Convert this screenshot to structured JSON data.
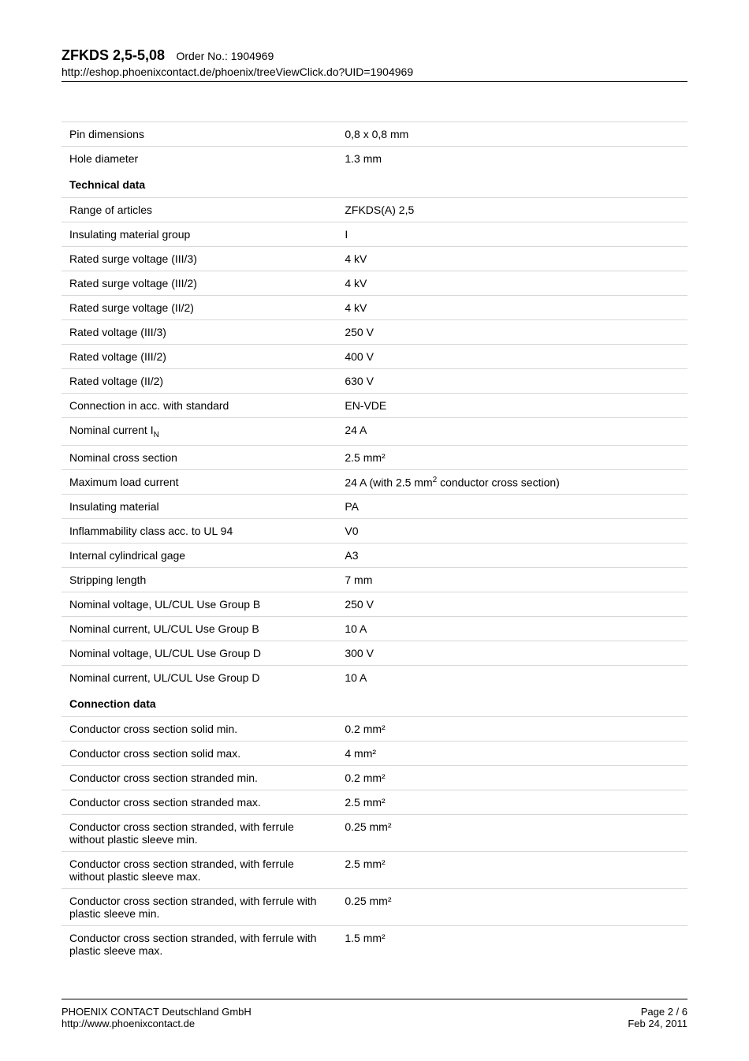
{
  "header": {
    "product": "ZFKDS 2,5-5,08",
    "order_label": "Order No.:",
    "order_no": "1904969",
    "url": "http://eshop.phoenixcontact.de/phoenix/treeViewClick.do?UID=1904969"
  },
  "sections": {
    "top": {
      "rows": [
        {
          "label": "Pin dimensions",
          "value": "0,8 x 0,8 mm"
        },
        {
          "label": "Hole diameter",
          "value": "1.3 mm"
        }
      ]
    },
    "technical": {
      "title": "Technical data",
      "rows": [
        {
          "label": "Range of articles",
          "value": "ZFKDS(A) 2,5"
        },
        {
          "label": "Insulating material group",
          "value": "I"
        },
        {
          "label": "Rated surge voltage (III/3)",
          "value": "4 kV"
        },
        {
          "label": "Rated surge voltage (III/2)",
          "value": "4 kV"
        },
        {
          "label": "Rated surge voltage (II/2)",
          "value": "4 kV"
        },
        {
          "label": "Rated voltage (III/3)",
          "value": "250 V"
        },
        {
          "label": "Rated voltage (III/2)",
          "value": "400 V"
        },
        {
          "label": "Rated voltage (II/2)",
          "value": "630 V"
        },
        {
          "label": "Connection in acc. with standard",
          "value": "EN-VDE"
        },
        {
          "label": "Nominal current I",
          "label_sub": "N",
          "value": "24 A"
        },
        {
          "label": "Nominal cross section",
          "value": "2.5 mm²"
        },
        {
          "label": "Maximum load current",
          "value": "24 A (with 2.5 mm",
          "value_sup": "2",
          "value_after": " conductor cross section)"
        },
        {
          "label": "Insulating material",
          "value": "PA"
        },
        {
          "label": "Inflammability class acc. to UL 94",
          "value": "V0"
        },
        {
          "label": "Internal cylindrical gage",
          "value": "A3"
        },
        {
          "label": "Stripping length",
          "value": "7 mm"
        },
        {
          "label": "Nominal voltage, UL/CUL Use Group B",
          "value": "250 V"
        },
        {
          "label": "Nominal current, UL/CUL Use Group B",
          "value": "10 A"
        },
        {
          "label": "Nominal voltage, UL/CUL Use Group D",
          "value": "300 V"
        },
        {
          "label": "Nominal current, UL/CUL Use Group D",
          "value": "10 A"
        }
      ]
    },
    "connection": {
      "title": "Connection data",
      "rows": [
        {
          "label": "Conductor cross section solid min.",
          "value": "0.2 mm²"
        },
        {
          "label": "Conductor cross section solid max.",
          "value": "4 mm²"
        },
        {
          "label": "Conductor cross section stranded min.",
          "value": "0.2 mm²"
        },
        {
          "label": "Conductor cross section stranded max.",
          "value": "2.5 mm²"
        },
        {
          "label": "Conductor cross section stranded, with ferrule without plastic sleeve min.",
          "value": "0.25 mm²"
        },
        {
          "label": "Conductor cross section stranded, with ferrule without plastic sleeve max.",
          "value": "2.5 mm²"
        },
        {
          "label": "Conductor cross section stranded, with ferrule with plastic sleeve min.",
          "value": "0.25 mm²"
        },
        {
          "label": "Conductor cross section stranded, with ferrule with plastic sleeve max.",
          "value": "1.5 mm²"
        }
      ]
    }
  },
  "footer": {
    "company": "PHOENIX CONTACT Deutschland GmbH",
    "site": "http://www.phoenixcontact.de",
    "page": "Page 2 / 6",
    "date": "Feb 24, 2011"
  }
}
